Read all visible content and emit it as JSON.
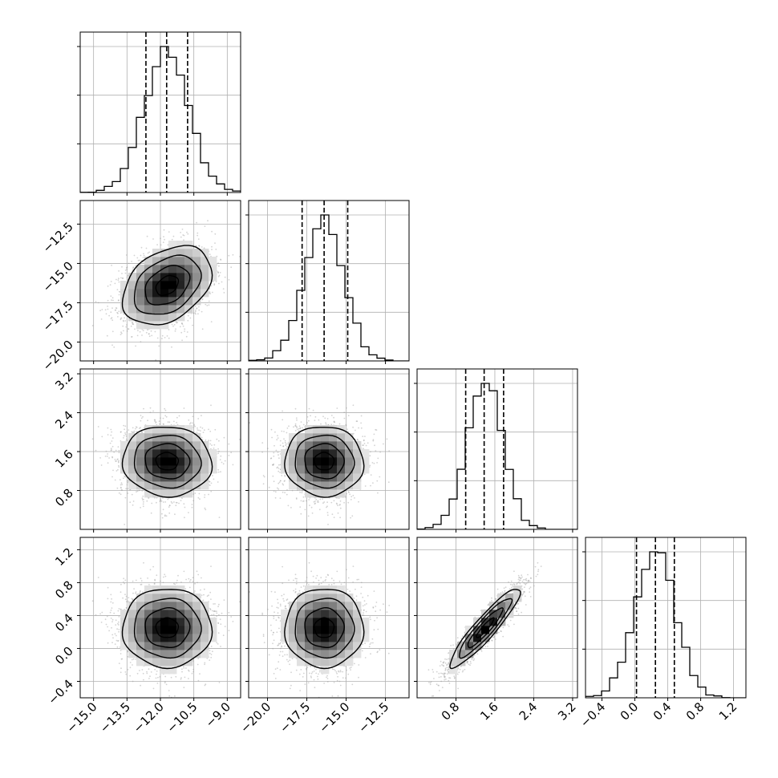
{
  "chart_data": {
    "type": "corner",
    "parameters": [
      {
        "range": [
          -15.6,
          -8.4
        ],
        "ticks": [
          "−15.0",
          "−13.5",
          "−12.0",
          "−10.5",
          "−9.0"
        ],
        "tick_values": [
          -15.0,
          -13.5,
          -12.0,
          -10.5,
          -9.0
        ],
        "mean": -11.7,
        "sd": 1.0,
        "quantiles": [
          -12.65,
          -11.72,
          -10.78
        ]
      },
      {
        "range": [
          -21.2,
          -11.0
        ],
        "ticks": [
          "−20.0",
          "−17.5",
          "−15.0",
          "−12.5"
        ],
        "tick_values": [
          -20.0,
          -17.5,
          -15.0,
          -12.5
        ],
        "mean": -16.4,
        "sd": 1.25,
        "quantiles": [
          -17.8,
          -16.4,
          -14.9
        ]
      },
      {
        "range": [
          0.0,
          3.3
        ],
        "ticks": [
          "0.8",
          "1.6",
          "2.4",
          "3.2"
        ],
        "tick_values": [
          0.8,
          1.6,
          2.4,
          3.2
        ],
        "mean": 1.4,
        "sd": 0.36,
        "quantiles": [
          1.0,
          1.38,
          1.78
        ]
      },
      {
        "range": [
          -0.6,
          1.35
        ],
        "ticks": [
          "−0.4",
          "0.0",
          "0.4",
          "0.8",
          "1.2"
        ],
        "tick_values": [
          -0.4,
          0.0,
          0.4,
          0.8,
          1.2
        ],
        "mean": 0.25,
        "sd": 0.24,
        "quantiles": [
          0.02,
          0.25,
          0.48
        ]
      }
    ],
    "correlations": {
      "0-1": 0.35,
      "0-2": -0.05,
      "0-3": 0.0,
      "1-2": -0.03,
      "1-3": 0.0,
      "2-3": 0.92
    },
    "hist_bins": 20,
    "grid": true,
    "colors": {
      "line": "#000000",
      "scatter": "#9e9e9e",
      "grid": "#b0b0b0"
    }
  }
}
